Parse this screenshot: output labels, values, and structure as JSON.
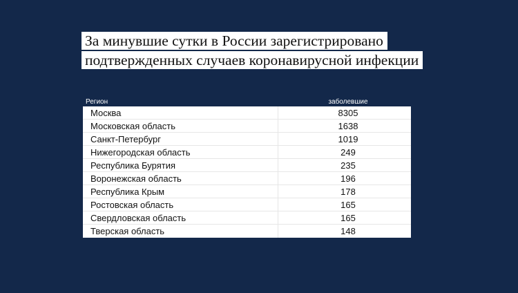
{
  "title": {
    "line1": "За минувшие сутки в России зарегистрировано",
    "line2": "подтвержденных случаев коронавирусной инфекции"
  },
  "table": {
    "headers": {
      "region": "Регион",
      "value": "заболевшие"
    },
    "rows": [
      {
        "region": "Москва",
        "value": "8305"
      },
      {
        "region": "Московская область",
        "value": "1638"
      },
      {
        "region": "Санкт-Петербург",
        "value": "1019"
      },
      {
        "region": "Нижегородская область",
        "value": "249"
      },
      {
        "region": "Республика Бурятия",
        "value": "235"
      },
      {
        "region": "Воронежская область",
        "value": "196"
      },
      {
        "region": "Республика Крым",
        "value": "178"
      },
      {
        "region": "Ростовская область",
        "value": "165"
      },
      {
        "region": "Свердловская область",
        "value": "165"
      },
      {
        "region": "Тверская область",
        "value": "148"
      }
    ]
  },
  "colors": {
    "background": "#13284a",
    "highlight": "#ffffff"
  }
}
